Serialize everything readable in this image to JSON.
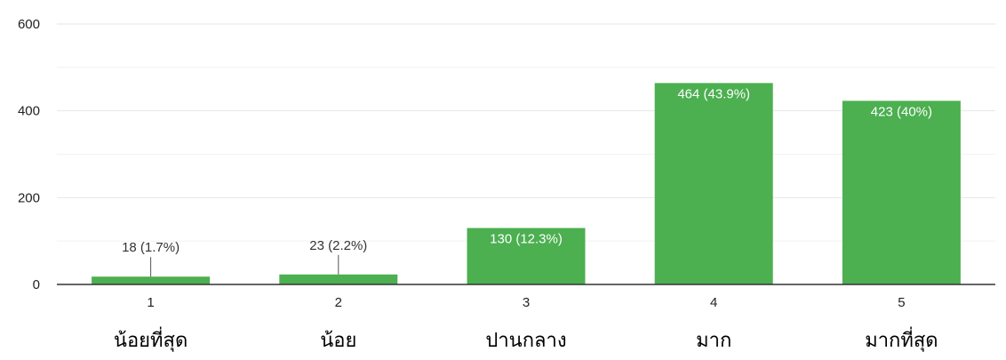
{
  "chart_data": {
    "type": "bar",
    "title": "",
    "xlabel": "",
    "ylabel": "",
    "categories": [
      "1",
      "2",
      "3",
      "4",
      "5"
    ],
    "category_sublabels": [
      "น้อยที่สุด",
      "น้อย",
      "ปานกลาง",
      "มาก",
      "มากที่สุด"
    ],
    "values": [
      18,
      23,
      130,
      464,
      423
    ],
    "data_labels": [
      "18 (1.7%)",
      "23 (2.2%)",
      "130 (12.3%)",
      "464 (43.9%)",
      "423 (40%)"
    ],
    "ylim": [
      0,
      600
    ],
    "yticks": [
      0,
      200,
      400,
      600
    ],
    "grid": true,
    "legend": "none",
    "bar_color": "#4caf50"
  }
}
